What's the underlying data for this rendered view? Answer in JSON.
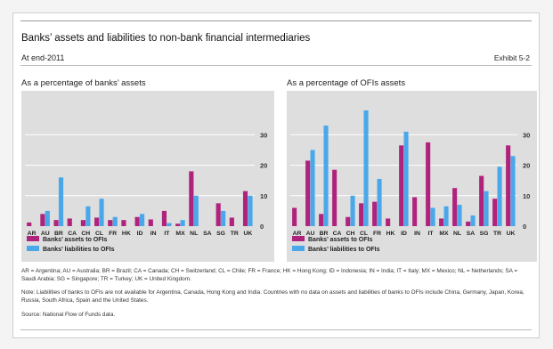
{
  "header": {
    "title": "Banks’ assets and liabilities to non-bank financial intermediaries",
    "subtitle": "At end-2011",
    "exhibit": "Exhibit 5-2"
  },
  "colors": {
    "assets": "#b0237d",
    "liabilities": "#4aa8ea",
    "panel_bg": "#dedede",
    "grid": "#ffffff"
  },
  "chart_data": [
    {
      "type": "bar",
      "title": "As a percentage of banks’ assets",
      "categories": [
        "AR",
        "AU",
        "BR",
        "CA",
        "CH",
        "CL",
        "FR",
        "HK",
        "ID",
        "IN",
        "IT",
        "MX",
        "NL",
        "SA",
        "SG",
        "TR",
        "UK"
      ],
      "series": [
        {
          "name": "Banks’ assets to OFIs",
          "values": [
            1.2,
            4,
            2,
            2.5,
            2,
            2.8,
            2,
            2,
            3,
            2.2,
            5,
            0.8,
            18,
            0,
            7.5,
            2.8,
            11.5
          ]
        },
        {
          "name": "Banks’ liabilities to OFIs",
          "values": [
            0,
            5,
            16,
            0,
            6.5,
            9,
            3,
            0,
            4,
            0,
            1,
            2,
            10,
            0,
            5,
            0,
            10
          ]
        }
      ],
      "yticks": [
        0,
        10,
        20,
        30
      ],
      "ylim": [
        0,
        38
      ]
    },
    {
      "type": "bar",
      "title": "As a percentage of OFIs assets",
      "categories": [
        "AR",
        "AU",
        "BR",
        "CA",
        "CH",
        "CL",
        "FR",
        "HK",
        "ID",
        "IN",
        "IT",
        "MX",
        "NL",
        "SA",
        "SG",
        "TR",
        "UK"
      ],
      "series": [
        {
          "name": "Banks’ assets to OFIs",
          "values": [
            6,
            21.5,
            4,
            18.5,
            3,
            7.5,
            8,
            2.5,
            26.5,
            9.5,
            27.5,
            2.5,
            12.5,
            1.5,
            16.5,
            9,
            26.5
          ]
        },
        {
          "name": "Banks’ liabilities to OFIs",
          "values": [
            0,
            25,
            33,
            0,
            10,
            38,
            15.5,
            0,
            31,
            0,
            6,
            6.5,
            7,
            3.5,
            11.5,
            19.5,
            23
          ]
        }
      ],
      "yticks": [
        0,
        10,
        20,
        30
      ],
      "ylim": [
        0,
        38
      ]
    }
  ],
  "notes": {
    "abbreviations": "AR = Argentina; AU = Australia; BR = Brazil; CA = Canada; CH = Switzerland; CL = Chile; FR = France; HK = Hong Kong; ID = Indonesia; IN = India; IT = Italy; MX = Mexico; NL = Netherlands; SA = Saudi Arabia; SG = Singapore; TR = Turkey; UK = United Kingdom.",
    "note": "Note: Liabilities of banks to OFIs are not available for Argentina, Canada, Hong Kong and India. Countries with no data on assets and liabilities of banks to OFIs include China, Germany, Japan, Korea, Russia, South Africa, Spain and the United States.",
    "source": "Source: National Flow of Funds data."
  }
}
